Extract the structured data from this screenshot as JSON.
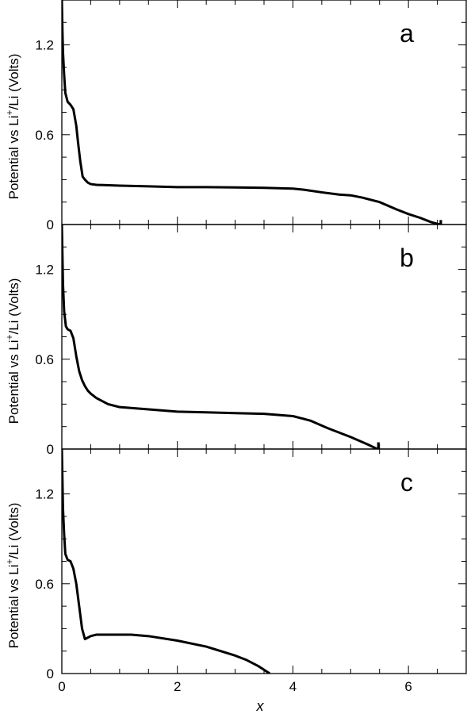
{
  "chart_data": [
    {
      "type": "line",
      "panel_label": "a",
      "title": "",
      "xlabel": "",
      "ylabel": "Potential vs Li+/Li (Volts)",
      "ylabel_parts": {
        "pre": "Potential vs Li",
        "sup": "+",
        "post": "/Li (Volts)"
      },
      "xlim": [
        0,
        7
      ],
      "ylim": [
        0,
        1.5
      ],
      "yticks": [
        0,
        0.6,
        1.2
      ],
      "ytick_labels": [
        "0",
        "0.6",
        "1.2"
      ],
      "grid": false,
      "series": [
        {
          "x": [
            0.0,
            0.01,
            0.02,
            0.04,
            0.06,
            0.1,
            0.15,
            0.2,
            0.25,
            0.28,
            0.32,
            0.36,
            0.4,
            0.45,
            0.5,
            0.6,
            1.0,
            1.5,
            2.0,
            2.5,
            3.0,
            3.5,
            4.0,
            4.2,
            4.5,
            4.8,
            5.0,
            5.2,
            5.5,
            5.8,
            6.0,
            6.2,
            6.4,
            6.5,
            6.56
          ],
          "y": [
            1.5,
            1.3,
            1.15,
            1.0,
            0.88,
            0.82,
            0.8,
            0.77,
            0.66,
            0.55,
            0.42,
            0.32,
            0.3,
            0.28,
            0.27,
            0.265,
            0.26,
            0.255,
            0.25,
            0.25,
            0.248,
            0.245,
            0.24,
            0.232,
            0.215,
            0.2,
            0.195,
            0.18,
            0.15,
            0.1,
            0.07,
            0.045,
            0.015,
            0.005,
            0.0
          ]
        },
        {
          "x": [
            6.56,
            6.56
          ],
          "y": [
            0.0,
            0.03
          ]
        }
      ]
    },
    {
      "type": "line",
      "panel_label": "b",
      "title": "",
      "xlabel": "",
      "ylabel": "Potential vs Li+/Li (Volts)",
      "ylabel_parts": {
        "pre": "Potential vs Li",
        "sup": "+",
        "post": "/Li (Volts)"
      },
      "xlim": [
        0,
        7
      ],
      "ylim": [
        0,
        1.5
      ],
      "yticks": [
        0,
        0.6,
        1.2
      ],
      "ytick_labels": [
        "0",
        "0.6",
        "1.2"
      ],
      "grid": false,
      "series": [
        {
          "x": [
            0.0,
            0.01,
            0.02,
            0.04,
            0.07,
            0.1,
            0.15,
            0.2,
            0.25,
            0.3,
            0.35,
            0.4,
            0.45,
            0.5,
            0.6,
            0.8,
            1.0,
            1.5,
            2.0,
            2.5,
            3.0,
            3.5,
            4.0,
            4.3,
            4.6,
            5.0,
            5.3,
            5.46
          ],
          "y": [
            1.5,
            1.3,
            1.1,
            0.92,
            0.82,
            0.8,
            0.79,
            0.74,
            0.62,
            0.52,
            0.46,
            0.42,
            0.39,
            0.37,
            0.34,
            0.3,
            0.28,
            0.265,
            0.25,
            0.245,
            0.24,
            0.235,
            0.22,
            0.19,
            0.14,
            0.08,
            0.03,
            0.0
          ]
        },
        {
          "x": [
            5.48,
            5.48
          ],
          "y": [
            0.0,
            0.045
          ]
        }
      ]
    },
    {
      "type": "line",
      "panel_label": "c",
      "title": "",
      "xlabel": "x",
      "ylabel": "Potential vs Li+/Li (Volts)",
      "ylabel_parts": {
        "pre": "Potential vs Li",
        "sup": "+",
        "post": "/Li (Volts)"
      },
      "xlim": [
        0,
        7
      ],
      "ylim": [
        0,
        1.5
      ],
      "xticks": [
        0,
        2,
        4,
        6
      ],
      "xtick_labels": [
        "0",
        "2",
        "4",
        "6"
      ],
      "yticks": [
        0,
        0.6,
        1.2
      ],
      "ytick_labels": [
        "0",
        "0.6",
        "1.2"
      ],
      "grid": false,
      "series": [
        {
          "x": [
            0.0,
            0.01,
            0.02,
            0.04,
            0.06,
            0.1,
            0.15,
            0.2,
            0.25,
            0.3,
            0.35,
            0.4,
            0.45,
            0.5,
            0.6,
            0.8,
            1.0,
            1.2,
            1.5,
            2.0,
            2.5,
            3.0,
            3.2,
            3.4,
            3.6
          ],
          "y": [
            1.5,
            1.3,
            1.1,
            0.93,
            0.8,
            0.76,
            0.75,
            0.7,
            0.6,
            0.45,
            0.3,
            0.23,
            0.24,
            0.25,
            0.26,
            0.26,
            0.26,
            0.26,
            0.25,
            0.22,
            0.18,
            0.12,
            0.09,
            0.05,
            0.0
          ]
        }
      ]
    }
  ]
}
